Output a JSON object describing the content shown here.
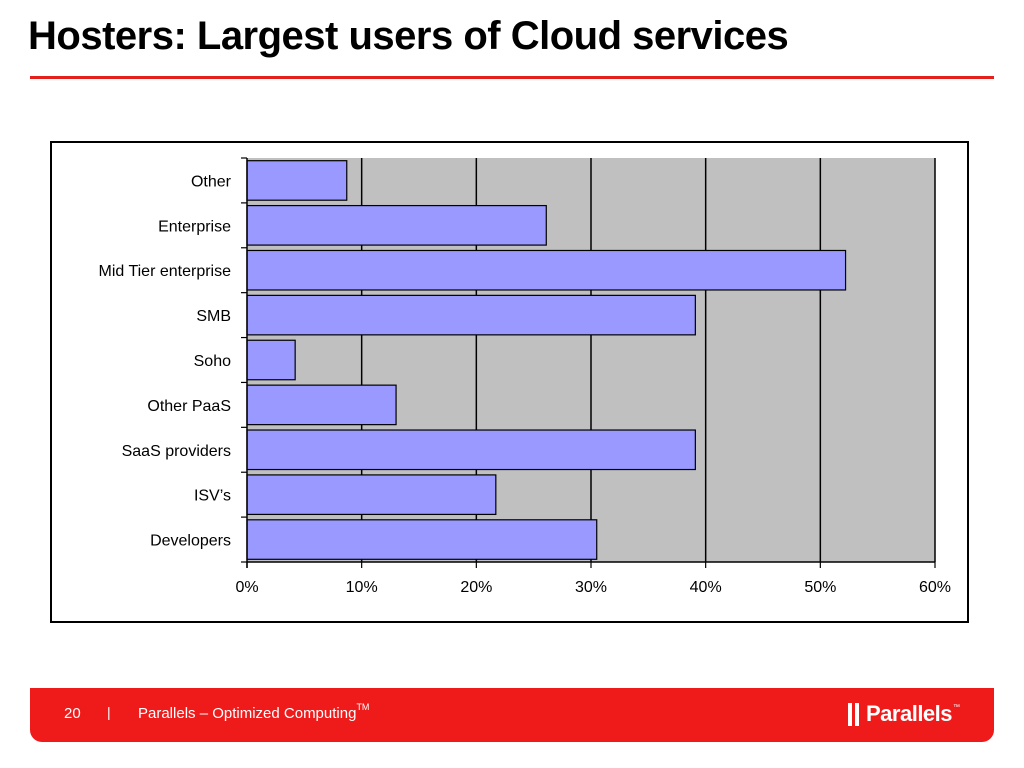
{
  "slide": {
    "title": "Hosters: Largest users of Cloud services",
    "page_number": "20",
    "separator": "|",
    "footer_text": "Parallels – Optimized Computing",
    "footer_tm": "TM",
    "logo_text": "Parallels",
    "logo_tm": "™",
    "colors": {
      "title_rule": "#e3201b",
      "footer_bg": "#ef1b1b",
      "bar_fill": "#9999ff",
      "plot_bg": "#c0c0c0"
    },
    "icons": [
      "parallels-logo-icon"
    ]
  },
  "chart_data": {
    "type": "bar",
    "orientation": "horizontal",
    "categories": [
      "Developers",
      "ISV’s",
      "SaaS providers",
      "Other PaaS",
      "Soho",
      "SMB",
      "Mid Tier enterprise",
      "Enterprise",
      "Other"
    ],
    "values": [
      0.305,
      0.217,
      0.391,
      0.13,
      0.042,
      0.391,
      0.522,
      0.261,
      0.087
    ],
    "xlim": [
      0,
      0.6
    ],
    "xticks": [
      "0%",
      "10%",
      "20%",
      "30%",
      "40%",
      "50%",
      "60%"
    ],
    "title": "",
    "xlabel": "",
    "ylabel": "",
    "grid": "vertical",
    "legend": "none"
  }
}
